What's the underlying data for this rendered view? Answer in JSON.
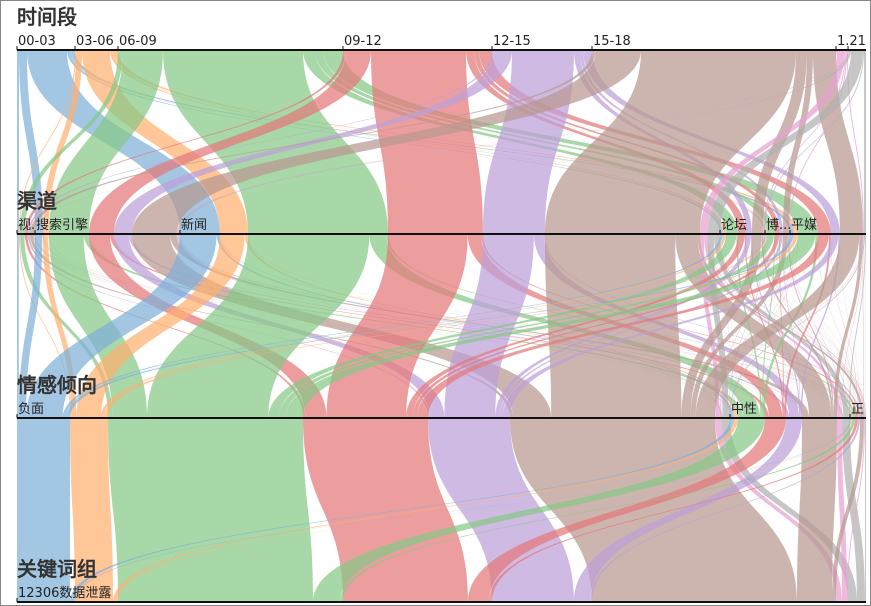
{
  "chart_data": {
    "type": "parallel_sets",
    "colors": [
      "#7fb0d8",
      "#ffb070",
      "#86c886",
      "#e4787a",
      "#bca0d8",
      "#b89890",
      "#e8a0d0",
      "#b0b0b0"
    ],
    "dimensions": [
      {
        "name": "时间段",
        "categories": [
          "00-03",
          "03-06",
          "06-09",
          "09-12",
          "12-15",
          "15-18",
          "1.21",
          null
        ],
        "values": [
          58,
          43,
          225,
          149,
          100,
          244,
          12,
          18
        ]
      },
      {
        "name": "渠道",
        "categories": [
          "视.",
          "搜索引擎",
          "新闻",
          "论坛",
          "博...",
          "平媒"
        ],
        "values": [
          [
            2,
            8,
            40,
            3,
            1,
            4
          ],
          [
            1,
            6,
            28,
            3,
            1,
            4
          ],
          [
            5,
            40,
            140,
            12,
            8,
            20
          ],
          [
            3,
            25,
            95,
            8,
            5,
            13
          ],
          [
            2,
            18,
            62,
            6,
            3,
            9
          ],
          [
            4,
            45,
            155,
            11,
            6,
            23
          ],
          [
            0,
            1,
            8,
            1,
            1,
            1
          ],
          [
            1,
            2,
            12,
            1,
            0,
            2
          ]
        ]
      },
      {
        "name": "情感倾向",
        "categories": [
          "负面",
          "中性",
          "正"
        ],
        "values": [
          [
            53,
            4,
            1
          ],
          [
            38,
            4,
            1
          ],
          [
            195,
            27,
            3
          ],
          [
            125,
            21,
            3
          ],
          [
            82,
            16,
            2
          ],
          [
            205,
            35,
            4
          ],
          [
            6,
            5,
            1
          ],
          [
            9,
            8,
            1
          ]
        ]
      },
      {
        "name": "关键词组",
        "categories": [
          "12306数据泄露"
        ],
        "values": [
          [
            58
          ],
          [
            43
          ],
          [
            225
          ],
          [
            149
          ],
          [
            100
          ],
          [
            244
          ],
          [
            12
          ],
          [
            18
          ]
        ]
      }
    ]
  }
}
